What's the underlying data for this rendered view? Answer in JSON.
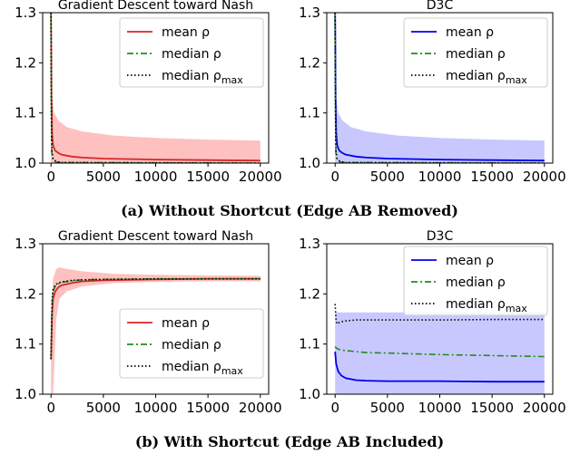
{
  "captions": {
    "a": "(a) Without Shortcut (Edge AB Removed)",
    "b": "(b) With Shortcut (Edge AB Included)"
  },
  "chart_data": [
    {
      "id": "a-left",
      "type": "line",
      "title": "Gradient Descent toward Nash",
      "xlabel": "",
      "ylabel": "",
      "xlim": [
        -800,
        20800
      ],
      "ylim": [
        1.0,
        1.3
      ],
      "xticks": [
        "0",
        "5000",
        "10000",
        "15000",
        "20000"
      ],
      "yticks": [
        "1.0",
        "1.1",
        "1.2",
        "1.3"
      ],
      "grid": false,
      "legend": "top-right",
      "color": "#d62728",
      "band_color": "#ffc0c0",
      "series": [
        {
          "name": "mean ρ",
          "style": "solid",
          "x": [
            0,
            50,
            100,
            200,
            400,
            700,
            1000,
            2000,
            3000,
            5000,
            10000,
            15000,
            20000
          ],
          "y": [
            1.3,
            1.12,
            1.06,
            1.035,
            1.025,
            1.02,
            1.017,
            1.013,
            1.011,
            1.009,
            1.007,
            1.006,
            1.005
          ]
        },
        {
          "name": "median ρ",
          "style": "dashdot",
          "x": [
            0,
            30,
            80,
            200,
            500,
            1000,
            20000
          ],
          "y": [
            1.3,
            1.1,
            1.02,
            1.006,
            1.002,
            1.001,
            1.0
          ]
        },
        {
          "name": "median ρmax",
          "style": "dotted",
          "x": [
            0,
            30,
            80,
            200,
            500,
            1000,
            20000
          ],
          "y": [
            1.3,
            1.11,
            1.025,
            1.008,
            1.003,
            1.001,
            1.0
          ]
        }
      ],
      "band": {
        "x": [
          0,
          100,
          300,
          700,
          1500,
          3000,
          6000,
          10000,
          15000,
          20000
        ],
        "upper": [
          1.3,
          1.13,
          1.1,
          1.085,
          1.072,
          1.063,
          1.055,
          1.05,
          1.047,
          1.045
        ],
        "lower": [
          1.0,
          1.0,
          1.0,
          1.0,
          1.0,
          1.0,
          1.0,
          1.0,
          1.0,
          1.0
        ]
      }
    },
    {
      "id": "a-right",
      "type": "line",
      "title": "D3C",
      "xlabel": "",
      "ylabel": "",
      "xlim": [
        -800,
        20800
      ],
      "ylim": [
        1.0,
        1.3
      ],
      "xticks": [
        "0",
        "5000",
        "10000",
        "15000",
        "20000"
      ],
      "yticks": [
        "1.0",
        "1.1",
        "1.2",
        "1.3"
      ],
      "grid": false,
      "legend": "top-right",
      "color": "#0000ee",
      "band_color": "#c8c8ff",
      "series": [
        {
          "name": "mean ρ",
          "style": "solid",
          "x": [
            0,
            50,
            100,
            200,
            400,
            700,
            1000,
            2000,
            3000,
            5000,
            10000,
            15000,
            20000
          ],
          "y": [
            1.3,
            1.12,
            1.06,
            1.035,
            1.025,
            1.02,
            1.017,
            1.013,
            1.011,
            1.009,
            1.007,
            1.006,
            1.005
          ]
        },
        {
          "name": "median ρ",
          "style": "dashdot",
          "x": [
            0,
            30,
            80,
            200,
            500,
            1000,
            20000
          ],
          "y": [
            1.3,
            1.1,
            1.02,
            1.006,
            1.002,
            1.001,
            1.0
          ]
        },
        {
          "name": "median ρmax",
          "style": "dotted",
          "x": [
            0,
            30,
            80,
            200,
            500,
            1000,
            20000
          ],
          "y": [
            1.3,
            1.11,
            1.025,
            1.008,
            1.003,
            1.001,
            1.0
          ]
        }
      ],
      "band": {
        "x": [
          0,
          100,
          300,
          700,
          1500,
          3000,
          6000,
          10000,
          15000,
          20000
        ],
        "upper": [
          1.3,
          1.13,
          1.1,
          1.085,
          1.072,
          1.063,
          1.055,
          1.05,
          1.047,
          1.045
        ],
        "lower": [
          1.0,
          1.0,
          1.0,
          1.0,
          1.0,
          1.0,
          1.0,
          1.0,
          1.0,
          1.0
        ]
      }
    },
    {
      "id": "b-left",
      "type": "line",
      "title": "Gradient Descent toward Nash",
      "xlabel": "",
      "ylabel": "",
      "xlim": [
        -800,
        20800
      ],
      "ylim": [
        1.0,
        1.3
      ],
      "xticks": [
        "0",
        "5000",
        "10000",
        "15000",
        "20000"
      ],
      "yticks": [
        "1.0",
        "1.1",
        "1.2",
        "1.3"
      ],
      "grid": false,
      "legend": "bottom-right",
      "color": "#d62728",
      "band_color": "#ffc0c0",
      "series": [
        {
          "name": "mean ρ",
          "style": "solid",
          "x": [
            0,
            100,
            200,
            400,
            700,
            1000,
            2000,
            3000,
            5000,
            10000,
            15000,
            20000
          ],
          "y": [
            1.07,
            1.16,
            1.19,
            1.205,
            1.213,
            1.217,
            1.222,
            1.225,
            1.227,
            1.229,
            1.23,
            1.23
          ]
        },
        {
          "name": "median ρ",
          "style": "dashdot",
          "x": [
            0,
            100,
            200,
            400,
            700,
            1000,
            2000,
            3000,
            5000,
            10000,
            15000,
            20000
          ],
          "y": [
            1.07,
            1.18,
            1.205,
            1.215,
            1.22,
            1.223,
            1.226,
            1.228,
            1.229,
            1.23,
            1.23,
            1.23
          ]
        },
        {
          "name": "median ρmax",
          "style": "dotted",
          "x": [
            0,
            100,
            200,
            400,
            700,
            1000,
            2000,
            3000,
            5000,
            10000,
            15000,
            20000
          ],
          "y": [
            1.07,
            1.19,
            1.21,
            1.218,
            1.222,
            1.224,
            1.227,
            1.228,
            1.229,
            1.23,
            1.23,
            1.23
          ]
        }
      ],
      "band": {
        "x": [
          0,
          200,
          500,
          800,
          1500,
          3000,
          6000,
          10000,
          15000,
          20000
        ],
        "upper": [
          1.15,
          1.23,
          1.25,
          1.253,
          1.25,
          1.245,
          1.24,
          1.238,
          1.237,
          1.236
        ],
        "lower": [
          1.0,
          1.0,
          1.15,
          1.19,
          1.205,
          1.215,
          1.222,
          1.224,
          1.225,
          1.225
        ]
      }
    },
    {
      "id": "b-right",
      "type": "line",
      "title": "D3C",
      "xlabel": "",
      "ylabel": "",
      "xlim": [
        -800,
        20800
      ],
      "ylim": [
        1.0,
        1.3
      ],
      "xticks": [
        "0",
        "5000",
        "10000",
        "15000",
        "20000"
      ],
      "yticks": [
        "1.0",
        "1.1",
        "1.2",
        "1.3"
      ],
      "grid": false,
      "legend": "top-right",
      "color": "#0000ee",
      "band_color": "#c8c8ff",
      "series": [
        {
          "name": "mean ρ",
          "style": "solid",
          "x": [
            0,
            100,
            300,
            600,
            1000,
            2000,
            3000,
            5000,
            10000,
            15000,
            20000
          ],
          "y": [
            1.085,
            1.06,
            1.045,
            1.037,
            1.032,
            1.028,
            1.027,
            1.026,
            1.026,
            1.025,
            1.025
          ]
        },
        {
          "name": "median ρ",
          "style": "dashdot",
          "x": [
            0,
            100,
            300,
            600,
            1000,
            2000,
            3000,
            5000,
            10000,
            15000,
            20000
          ],
          "y": [
            1.095,
            1.092,
            1.09,
            1.088,
            1.087,
            1.085,
            1.083,
            1.082,
            1.079,
            1.077,
            1.075
          ]
        },
        {
          "name": "median ρmax",
          "style": "dotted",
          "x": [
            0,
            50,
            100,
            200,
            400,
            700,
            1000,
            2000,
            5000,
            10000,
            15000,
            20000
          ],
          "y": [
            1.18,
            1.16,
            1.145,
            1.14,
            1.143,
            1.145,
            1.146,
            1.148,
            1.148,
            1.148,
            1.149,
            1.149
          ]
        }
      ],
      "band": {
        "x": [
          0,
          20000
        ],
        "upper": [
          1.163,
          1.163
        ],
        "lower": [
          1.0,
          1.0
        ]
      }
    }
  ]
}
